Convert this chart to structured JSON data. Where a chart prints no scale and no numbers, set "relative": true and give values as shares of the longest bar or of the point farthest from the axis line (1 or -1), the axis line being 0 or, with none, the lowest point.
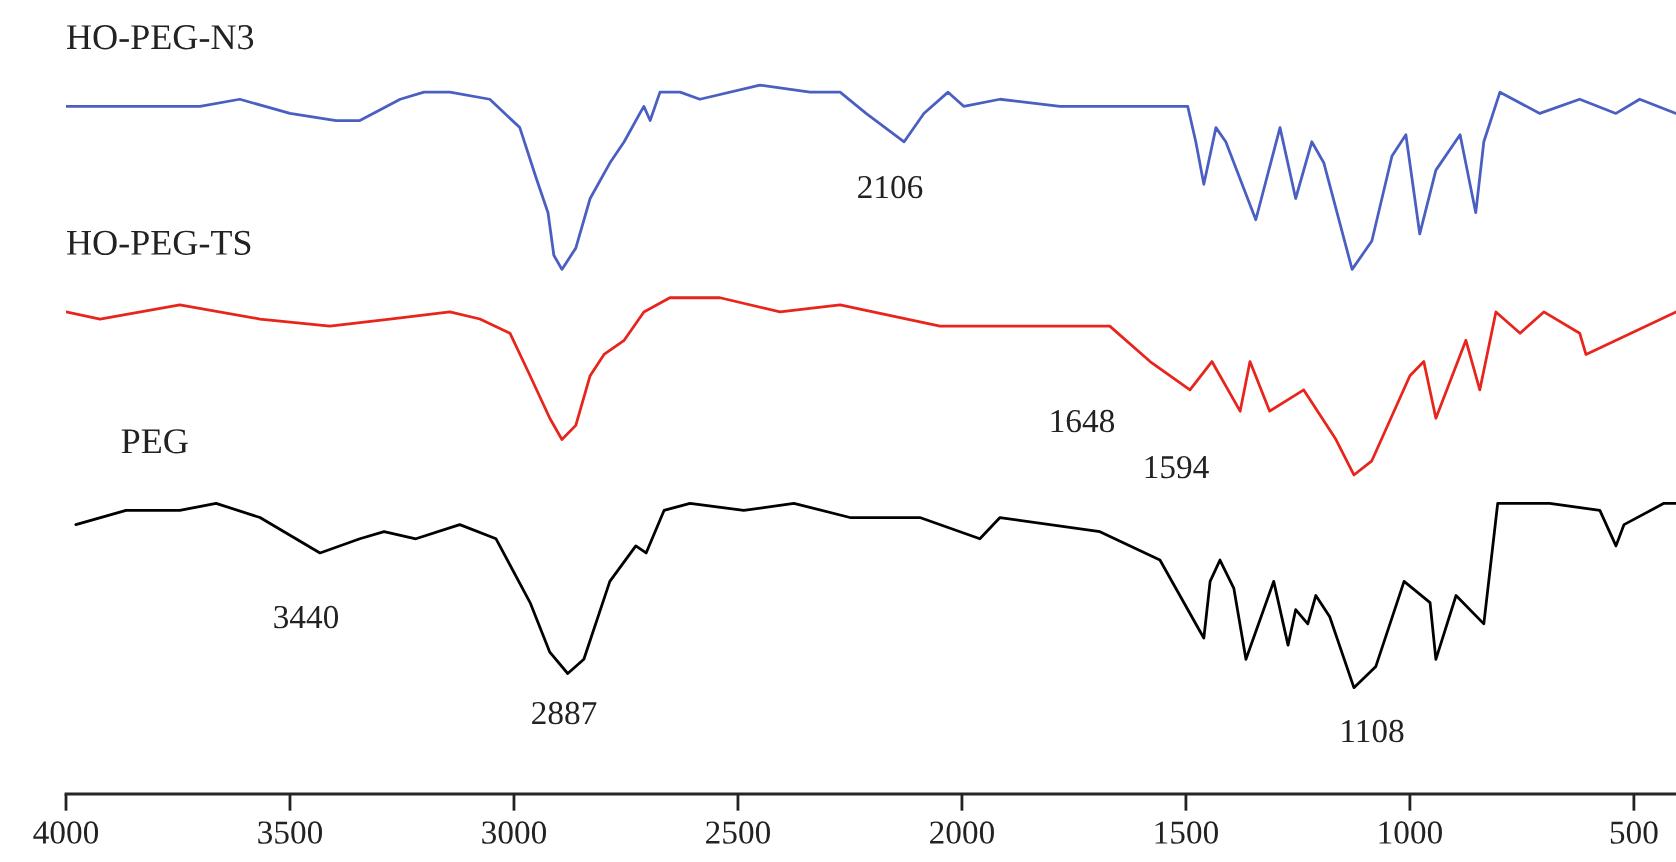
{
  "chart_data": {
    "type": "line",
    "relative": true,
    "xlim": [
      4000,
      406
    ],
    "xticks": [
      4000,
      3500,
      3000,
      2500,
      2000,
      1500,
      1000,
      500
    ],
    "grid": false,
    "legend": false,
    "marker": "none",
    "line_style": "solid",
    "series": [
      {
        "name": "HO-PEG-N3",
        "color": "#4a5fc1",
        "x": [
          4000,
          3879,
          3701,
          3612,
          3500,
          3397,
          3344,
          3254,
          3201,
          3143,
          3054,
          2987,
          2951,
          2924,
          2911,
          2893,
          2862,
          2830,
          2786,
          2754,
          2719,
          2710,
          2696,
          2674,
          2629,
          2585,
          2451,
          2339,
          2272,
          2214,
          2129,
          2085,
          2031,
          1996,
          1915,
          1781,
          1692,
          1496,
          1478,
          1460,
          1433,
          1411,
          1344,
          1290,
          1255,
          1219,
          1192,
          1129,
          1085,
          1040,
          1009,
          978,
          942,
          888,
          853,
          835,
          799,
          710,
          621,
          540,
          487,
          406
        ],
        "values": [
          0.97,
          0.97,
          0.97,
          0.98,
          0.96,
          0.95,
          0.95,
          0.98,
          0.99,
          0.99,
          0.98,
          0.94,
          0.87,
          0.82,
          0.76,
          0.74,
          0.77,
          0.84,
          0.89,
          0.92,
          0.96,
          0.97,
          0.95,
          0.99,
          0.99,
          0.98,
          1.0,
          0.99,
          0.99,
          0.96,
          0.92,
          0.96,
          0.99,
          0.97,
          0.98,
          0.97,
          0.97,
          0.97,
          0.92,
          0.86,
          0.94,
          0.92,
          0.81,
          0.94,
          0.84,
          0.92,
          0.89,
          0.74,
          0.78,
          0.9,
          0.93,
          0.79,
          0.88,
          0.93,
          0.82,
          0.92,
          0.99,
          0.96,
          0.98,
          0.96,
          0.98,
          0.96
        ]
      },
      {
        "name": "HO-PEG-TS",
        "color": "#e8251c",
        "x": [
          4000,
          3924,
          3746,
          3567,
          3411,
          3277,
          3143,
          3076,
          3009,
          2964,
          2920,
          2893,
          2862,
          2830,
          2799,
          2754,
          2710,
          2652,
          2540,
          2406,
          2272,
          2049,
          1915,
          1670,
          1580,
          1491,
          1442,
          1379,
          1357,
          1313,
          1237,
          1165,
          1125,
          1085,
          1000,
          969,
          942,
          875,
          844,
          808,
          754,
          701,
          621,
          607,
          406
        ],
        "values": [
          0.68,
          0.67,
          0.69,
          0.67,
          0.66,
          0.67,
          0.68,
          0.67,
          0.65,
          0.59,
          0.53,
          0.5,
          0.52,
          0.59,
          0.62,
          0.64,
          0.68,
          0.7,
          0.7,
          0.68,
          0.69,
          0.66,
          0.66,
          0.66,
          0.61,
          0.57,
          0.61,
          0.54,
          0.61,
          0.54,
          0.57,
          0.5,
          0.45,
          0.47,
          0.59,
          0.61,
          0.53,
          0.64,
          0.57,
          0.68,
          0.65,
          0.68,
          0.65,
          0.62,
          0.68
        ]
      },
      {
        "name": "PEG",
        "color": "#000000",
        "x": [
          3978,
          3866,
          3746,
          3665,
          3567,
          3433,
          3344,
          3290,
          3219,
          3121,
          3040,
          2964,
          2920,
          2880,
          2844,
          2786,
          2728,
          2705,
          2665,
          2607,
          2487,
          2375,
          2250,
          2183,
          2094,
          1960,
          1915,
          1692,
          1558,
          1469,
          1460,
          1446,
          1424,
          1393,
          1366,
          1304,
          1272,
          1255,
          1228,
          1210,
          1179,
          1125,
          1076,
          1013,
          955,
          942,
          897,
          835,
          804,
          688,
          576,
          540,
          522,
          433,
          406
        ],
        "values": [
          0.38,
          0.4,
          0.4,
          0.41,
          0.39,
          0.34,
          0.36,
          0.37,
          0.36,
          0.38,
          0.36,
          0.27,
          0.2,
          0.17,
          0.19,
          0.3,
          0.35,
          0.34,
          0.4,
          0.41,
          0.4,
          0.41,
          0.39,
          0.39,
          0.39,
          0.36,
          0.39,
          0.37,
          0.33,
          0.23,
          0.22,
          0.3,
          0.33,
          0.29,
          0.19,
          0.3,
          0.21,
          0.26,
          0.24,
          0.28,
          0.25,
          0.15,
          0.18,
          0.3,
          0.27,
          0.19,
          0.28,
          0.24,
          0.41,
          0.41,
          0.4,
          0.35,
          0.38,
          0.41,
          0.41
        ]
      }
    ],
    "annotations": [
      "2106",
      "1648",
      "1594",
      "3440",
      "2887",
      "1108"
    ]
  }
}
